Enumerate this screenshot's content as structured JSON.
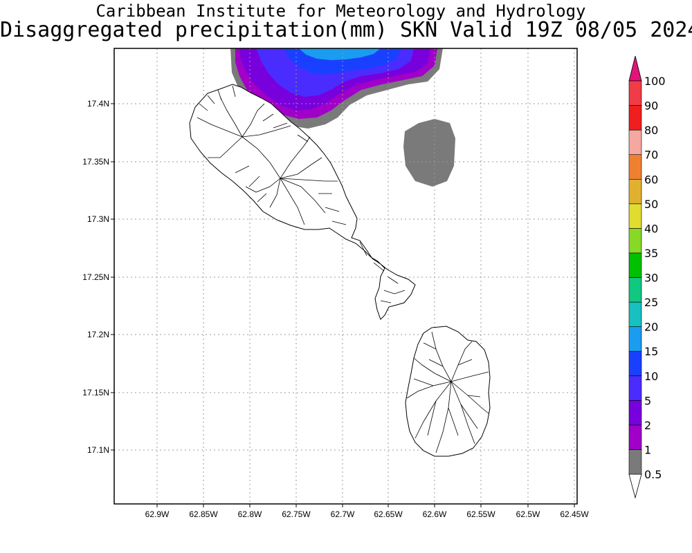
{
  "title": {
    "line1": "Caribbean Institute for Meteorology and Hydrology",
    "line2": "Disaggregated precipitation(mm) SKN Valid 19Z 08/05 2024"
  },
  "map": {
    "lat_range": [
      17.05,
      17.45
    ],
    "lon_range_west": [
      62.95,
      62.45
    ],
    "lat_ticks": [
      "17.4N",
      "17.35N",
      "17.3N",
      "17.25N",
      "17.2N",
      "17.15N",
      "17.1N"
    ],
    "lon_ticks": [
      "62.9W",
      "62.85W",
      "62.8W",
      "62.75W",
      "62.7W",
      "62.65W",
      "62.6W",
      "62.55W",
      "62.5W",
      "62.45W"
    ],
    "grid": "dotted",
    "islands": [
      "St. Kitts",
      "Nevis"
    ]
  },
  "colorbar": {
    "levels": [
      "0.5",
      "1",
      "2",
      "5",
      "10",
      "15",
      "20",
      "25",
      "30",
      "35",
      "40",
      "50",
      "60",
      "70",
      "80",
      "90",
      "100"
    ],
    "colors": [
      "#7a7a7a",
      "#a000c8",
      "#7800dc",
      "#4a2cff",
      "#1a40ff",
      "#1a9cf0",
      "#18c0c0",
      "#10c880",
      "#00c000",
      "#88d828",
      "#e0dc30",
      "#e0b030",
      "#f08030",
      "#f4a8a0",
      "#f01e1e",
      "#f03c46"
    ],
    "upper_arrow_color": "#e0147a"
  },
  "precip_colors": {
    "c0_5": "#7a7a7a",
    "c1": "#a000c8",
    "c2": "#7800dc",
    "c5": "#4a2cff",
    "c10": "#1a40ff",
    "c15": "#1a9cf0"
  }
}
